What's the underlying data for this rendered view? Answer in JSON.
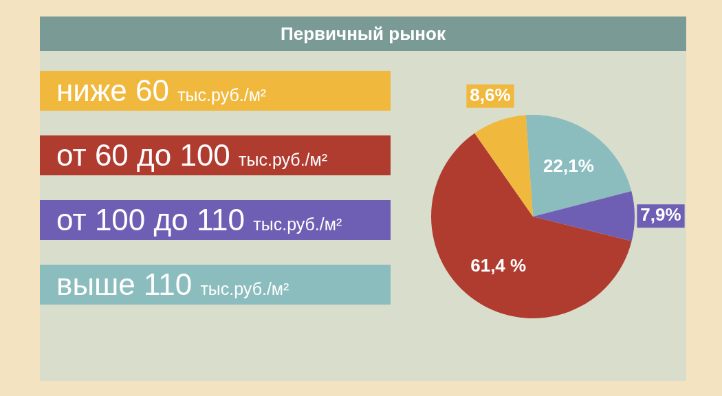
{
  "chart_data": {
    "type": "pie",
    "title": "Первичный рынок",
    "categories": [
      "ниже 60 тыс.руб./м²",
      "от 60 до 100 тыс.руб./м²",
      "от 100 до 110 тыс.руб./м²",
      "выше 110 тыс.руб./м²"
    ],
    "values": [
      8.6,
      61.4,
      7.9,
      22.1
    ],
    "value_labels": [
      "8,6%",
      "61,4 %",
      "7,9%",
      "22,1%"
    ],
    "colors": [
      "#f0b83c",
      "#b03c30",
      "#6e5fb4",
      "#8bbcbe"
    ],
    "legend": "left"
  }
}
